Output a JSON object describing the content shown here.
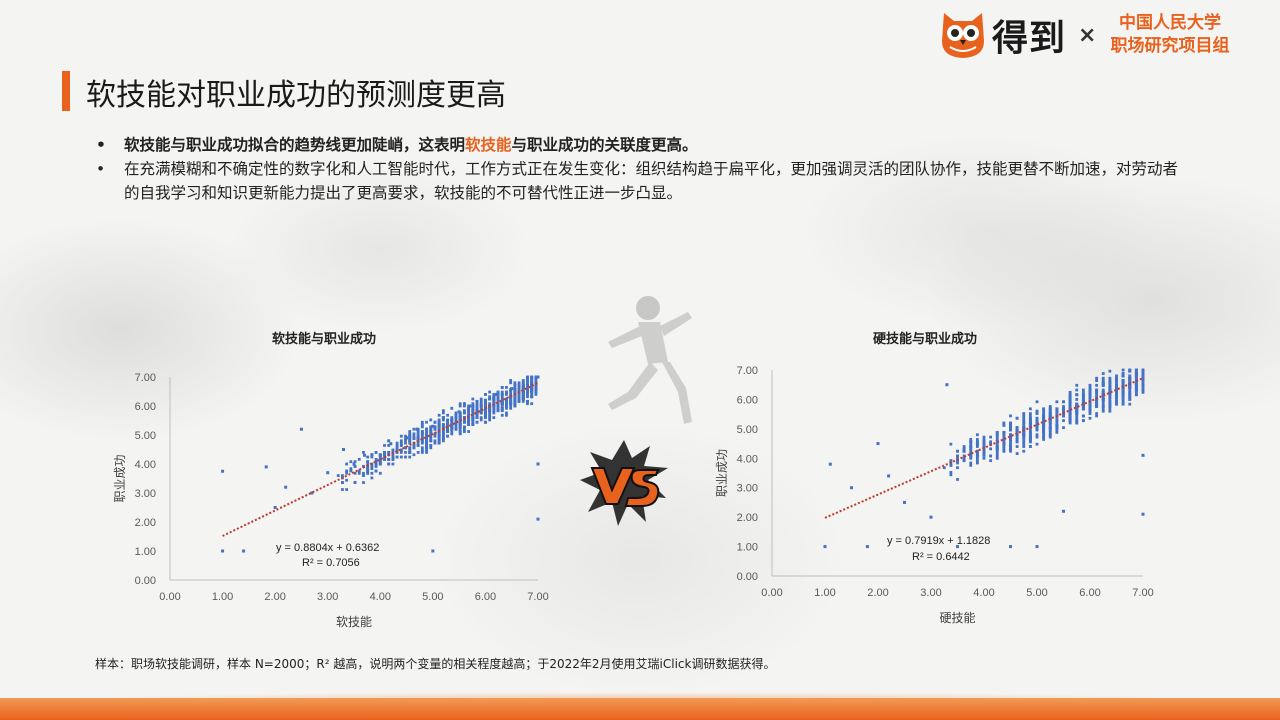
{
  "header": {
    "brand": "得到",
    "times": "×",
    "partner_line1": "中国人民大学",
    "partner_line2": "职场研究项目组"
  },
  "slide": {
    "title": "软技能对职业成功的预测度更高",
    "bullet1_pre": "软技能与职业成功拟合的趋势线更加陡峭，这表明",
    "bullet1_hl": "软技能",
    "bullet1_post": "与职业成功的关联度更高。",
    "bullet2": "在充满模糊和不确定性的数字化和人工智能时代，工作方式正在发生变化：组织结构趋于扁平化，更加强调灵活的团队协作，技能更替不断加速，对劳动者的自我学习和知识更新能力提出了更高要求，软技能的不可替代性正进一步凸显。",
    "bullet_marker": "•",
    "footnote": "样本：职场软技能调研，样本 N=2000；R² 越高，说明两个变量的相关程度越高；于2022年2月使用艾瑞iClick调研数据获得。"
  },
  "colors": {
    "accent": "#e8611d",
    "points": "#4472c4",
    "trend": "#c0392b"
  },
  "chart_data": [
    {
      "type": "scatter",
      "title": "软技能与职业成功",
      "xlabel": "软技能",
      "ylabel": "职业成功",
      "xlim": [
        0,
        7
      ],
      "ylim": [
        0,
        7
      ],
      "xticks": [
        "0.00",
        "1.00",
        "2.00",
        "3.00",
        "4.00",
        "5.00",
        "6.00",
        "7.00"
      ],
      "yticks": [
        "0.00",
        "1.00",
        "2.00",
        "3.00",
        "4.00",
        "5.00",
        "6.00",
        "7.00"
      ],
      "trendline": {
        "slope": 0.8804,
        "intercept": 0.6362,
        "x_range": [
          1.0,
          7.0
        ]
      },
      "equation": "y = 0.8804x + 0.6362",
      "r2": "R² = 0.7056",
      "n": 2000,
      "points_description_sample": [
        [
          1.0,
          1.0
        ],
        [
          1.0,
          3.75
        ],
        [
          1.4,
          1.0
        ],
        [
          1.83,
          3.9
        ],
        [
          2.0,
          2.5
        ],
        [
          2.2,
          3.2
        ],
        [
          2.5,
          5.2
        ],
        [
          2.7,
          3.0
        ],
        [
          3.0,
          3.7
        ],
        [
          3.3,
          4.5
        ],
        [
          3.5,
          4.0
        ],
        [
          3.7,
          4.3
        ],
        [
          4.0,
          4.3
        ],
        [
          4.2,
          4.7
        ],
        [
          4.5,
          4.9
        ],
        [
          4.7,
          5.2
        ],
        [
          5.0,
          5.3
        ],
        [
          5.0,
          1.0
        ],
        [
          5.2,
          5.6
        ],
        [
          5.5,
          5.8
        ],
        [
          5.7,
          6.0
        ],
        [
          6.0,
          6.2
        ],
        [
          6.2,
          6.4
        ],
        [
          6.5,
          6.6
        ],
        [
          6.8,
          6.9
        ],
        [
          7.0,
          7.0
        ],
        [
          7.0,
          2.1
        ],
        [
          7.0,
          4.0
        ]
      ]
    },
    {
      "type": "scatter",
      "title": "硬技能与职业成功",
      "xlabel": "硬技能",
      "ylabel": "职业成功",
      "xlim": [
        0,
        7
      ],
      "ylim": [
        0,
        7
      ],
      "xticks": [
        "0.00",
        "1.00",
        "2.00",
        "3.00",
        "4.00",
        "5.00",
        "6.00",
        "7.00"
      ],
      "yticks": [
        "0.00",
        "1.00",
        "2.00",
        "3.00",
        "4.00",
        "5.00",
        "6.00",
        "7.00"
      ],
      "trendline": {
        "slope": 0.7919,
        "intercept": 1.1828,
        "x_range": [
          1.0,
          7.0
        ]
      },
      "equation": "y = 0.7919x + 1.1828",
      "r2": "R² = 0.6442",
      "n": 2000,
      "points_description_sample": [
        [
          1.0,
          1.0
        ],
        [
          1.1,
          3.8
        ],
        [
          1.5,
          3.0
        ],
        [
          1.8,
          1.0
        ],
        [
          2.0,
          4.5
        ],
        [
          2.2,
          3.4
        ],
        [
          2.5,
          2.5
        ],
        [
          3.0,
          2.0
        ],
        [
          3.3,
          6.5
        ],
        [
          3.5,
          1.0
        ],
        [
          4.0,
          4.1
        ],
        [
          4.5,
          4.3
        ],
        [
          4.5,
          1.0
        ],
        [
          5.0,
          5.0
        ],
        [
          5.0,
          1.0
        ],
        [
          5.5,
          5.6
        ],
        [
          5.5,
          2.2
        ],
        [
          6.0,
          6.0
        ],
        [
          6.5,
          6.5
        ],
        [
          7.0,
          7.0
        ],
        [
          7.0,
          2.1
        ],
        [
          7.0,
          4.1
        ]
      ]
    }
  ]
}
